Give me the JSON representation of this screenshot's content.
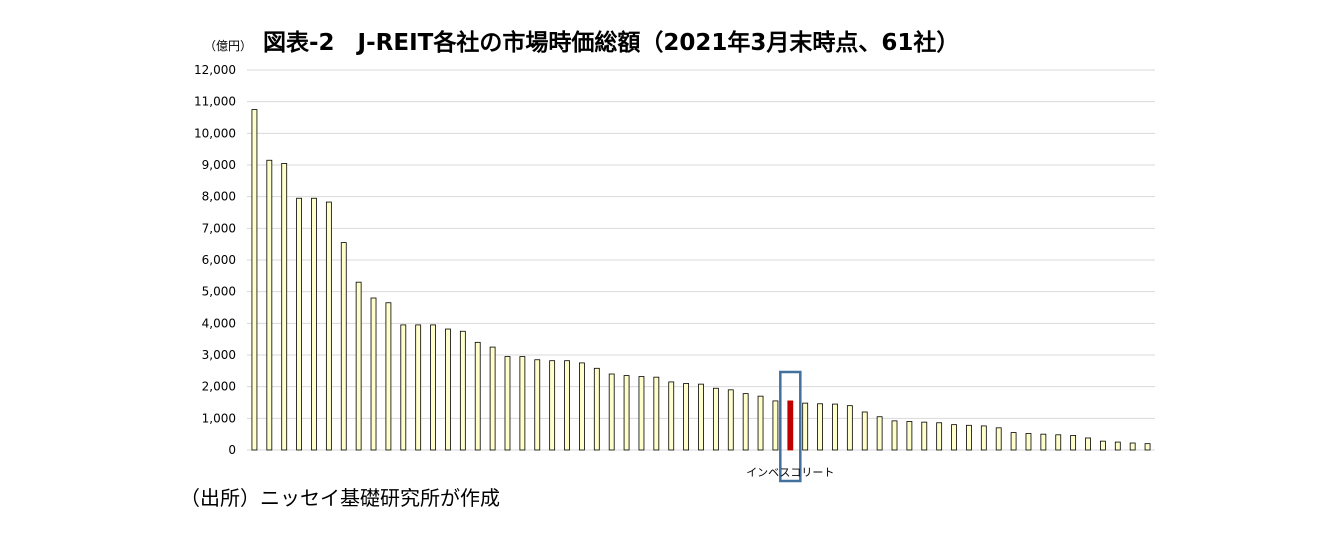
{
  "title": "図表-2　J-REIT各社の市場時価総額（2021年3月末時点、61社）",
  "unit_label": "（億円）",
  "source_note": "（出所）ニッセイ基礎研究所が作成",
  "colors": {
    "bar_fill": "#ffffcc",
    "bar_stroke": "#000000",
    "highlight_fill": "#c00000",
    "highlight_box": "#41719c",
    "grid": "#d9d9d9"
  },
  "chart_data": {
    "type": "bar",
    "title": "図表-2　J-REIT各社の市場時価総額（2021年3月末時点、61社）",
    "ylabel": "（億円）",
    "xlabel": "",
    "ylim": [
      0,
      12000
    ],
    "yticks": [
      0,
      1000,
      2000,
      3000,
      4000,
      5000,
      6000,
      7000,
      8000,
      9000,
      10000,
      11000,
      12000
    ],
    "ytick_labels": [
      "0",
      "1,000",
      "2,000",
      "3,000",
      "4,000",
      "5,000",
      "6,000",
      "7,000",
      "8,000",
      "9,000",
      "10,000",
      "11,000",
      "12,000"
    ],
    "grid": true,
    "legend": "none",
    "values": [
      10750,
      9150,
      9050,
      7950,
      7950,
      7830,
      6550,
      5300,
      4800,
      4650,
      3950,
      3950,
      3950,
      3820,
      3750,
      3400,
      3250,
      2950,
      2950,
      2850,
      2820,
      2820,
      2750,
      2580,
      2400,
      2350,
      2320,
      2300,
      2150,
      2100,
      2080,
      1950,
      1900,
      1780,
      1700,
      1550,
      1550,
      1480,
      1460,
      1450,
      1400,
      1200,
      1050,
      920,
      900,
      880,
      860,
      800,
      780,
      760,
      700,
      550,
      520,
      500,
      480,
      460,
      380,
      280,
      250,
      220,
      200
    ],
    "highlight_index": 36,
    "highlight_label": "インベスコリート"
  }
}
